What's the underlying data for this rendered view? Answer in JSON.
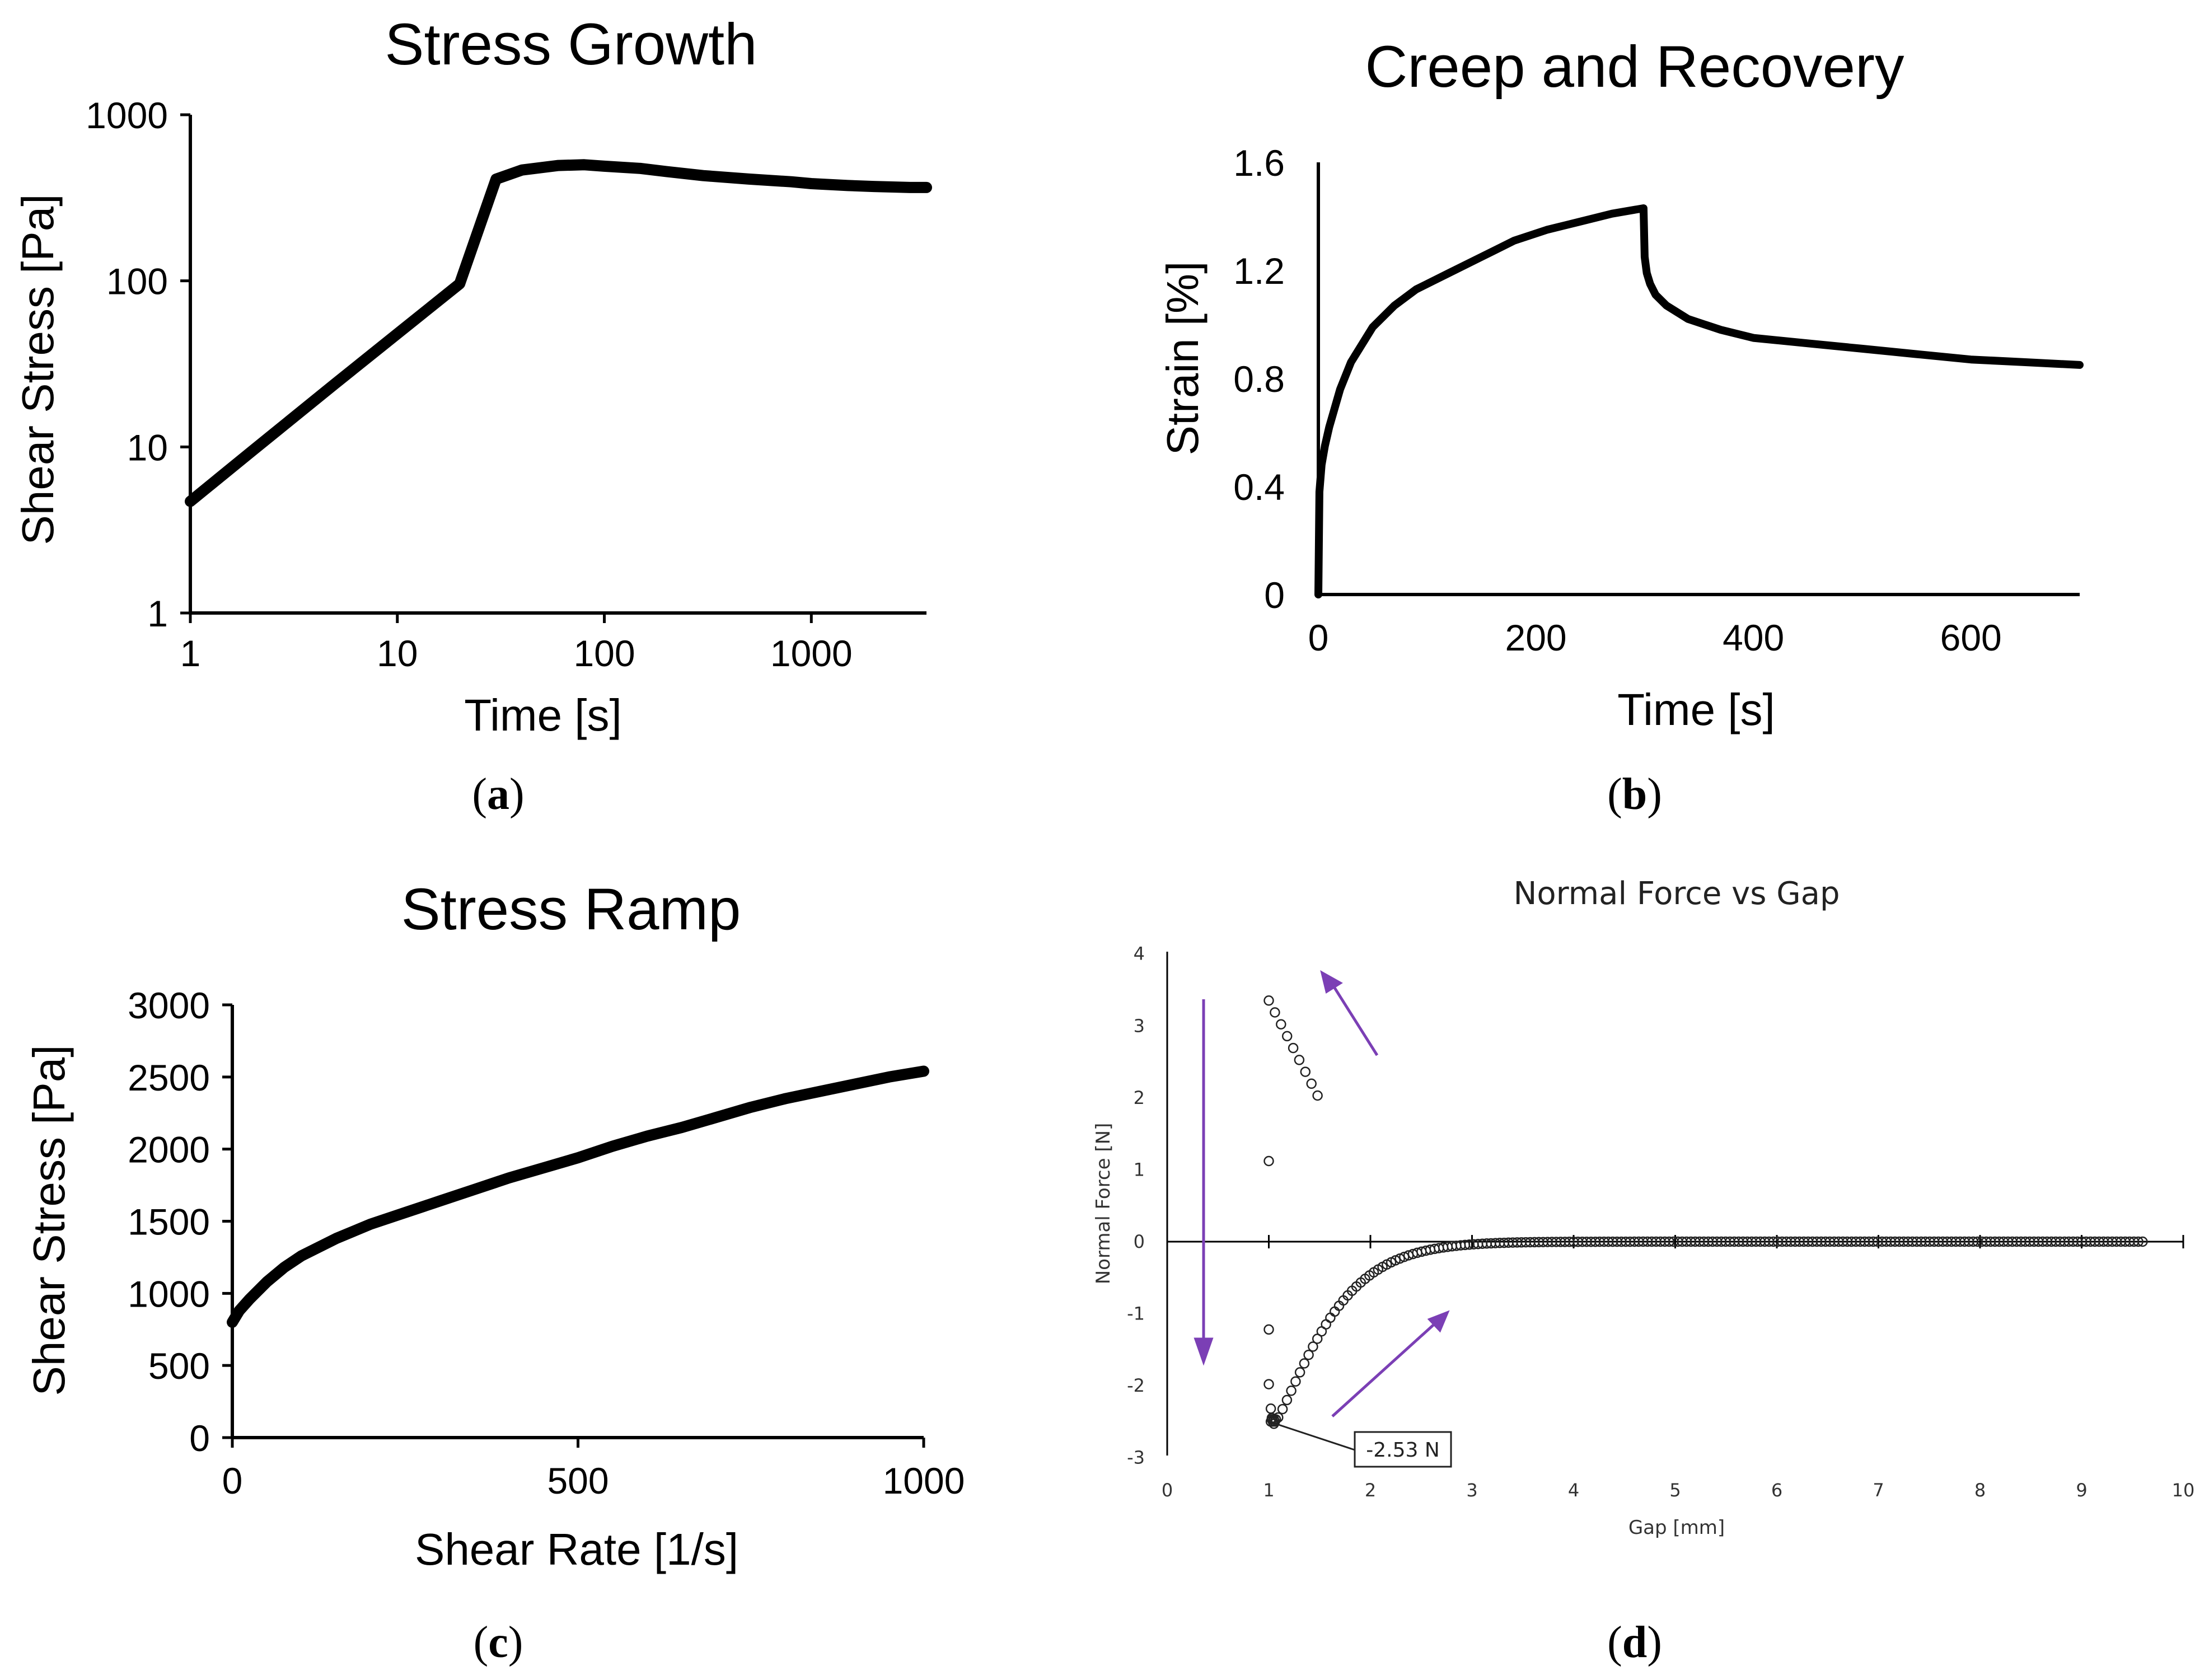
{
  "chart_data": [
    {
      "panel": "a",
      "type": "line",
      "title": "Stress Growth",
      "xlabel": "Time [s]",
      "ylabel": "Shear Stress [Pa]",
      "xscale": "log",
      "yscale": "log",
      "xlim": [
        1,
        3600
      ],
      "ylim": [
        1,
        1000
      ],
      "xticks": [
        "1",
        "10",
        "100",
        "1000"
      ],
      "yticks": [
        "1",
        "10",
        "100",
        "1000"
      ],
      "series": [
        {
          "name": "Shear Stress",
          "x": [
            1,
            2,
            5,
            10,
            20,
            30,
            40,
            60,
            80,
            100,
            150,
            200,
            300,
            500,
            800,
            1000,
            1500,
            2000,
            3000,
            3600
          ],
          "y": [
            4.7,
            9.5,
            24,
            48,
            96,
            410,
            465,
            495,
            500,
            490,
            475,
            455,
            430,
            410,
            395,
            385,
            375,
            370,
            365,
            365
          ]
        }
      ],
      "caption": "a"
    },
    {
      "panel": "b",
      "type": "line",
      "title": "Creep and Recovery",
      "xlabel": "Time [s]",
      "ylabel": "Strain [%]",
      "xlim": [
        0,
        700
      ],
      "ylim": [
        0,
        1.6
      ],
      "xticks": [
        "0",
        "200",
        "400",
        "600"
      ],
      "yticks": [
        "0",
        "0.4",
        "0.8",
        "1.2",
        "1.6"
      ],
      "series": [
        {
          "name": "Strain",
          "x": [
            0,
            1,
            3,
            6,
            10,
            20,
            30,
            50,
            70,
            90,
            120,
            150,
            180,
            210,
            240,
            270,
            299,
            300,
            302,
            305,
            310,
            320,
            340,
            370,
            400,
            450,
            500,
            550,
            600,
            650,
            700
          ],
          "y": [
            0,
            0.38,
            0.48,
            0.55,
            0.62,
            0.76,
            0.86,
            0.99,
            1.07,
            1.13,
            1.19,
            1.25,
            1.31,
            1.35,
            1.38,
            1.41,
            1.43,
            1.25,
            1.19,
            1.15,
            1.11,
            1.07,
            1.02,
            0.98,
            0.95,
            0.93,
            0.91,
            0.89,
            0.87,
            0.86,
            0.85
          ]
        }
      ],
      "caption": "b"
    },
    {
      "panel": "c",
      "type": "line",
      "title": "Stress Ramp",
      "xlabel": "Shear Rate [1/s]",
      "ylabel": "Shear Stress [Pa]",
      "xlim": [
        0,
        1000
      ],
      "ylim": [
        0,
        3000
      ],
      "xticks": [
        "0",
        "500",
        "1000"
      ],
      "yticks": [
        "0",
        "500",
        "1000",
        "1500",
        "2000",
        "2500",
        "3000"
      ],
      "series": [
        {
          "name": "Shear Stress",
          "x": [
            0,
            10,
            25,
            50,
            75,
            100,
            150,
            200,
            250,
            300,
            350,
            400,
            450,
            500,
            550,
            600,
            650,
            700,
            750,
            800,
            850,
            900,
            950,
            1000
          ],
          "y": [
            800,
            880,
            960,
            1080,
            1180,
            1260,
            1380,
            1480,
            1560,
            1640,
            1720,
            1800,
            1870,
            1940,
            2020,
            2090,
            2150,
            2220,
            2290,
            2350,
            2400,
            2450,
            2500,
            2540
          ]
        }
      ],
      "caption": "c"
    },
    {
      "panel": "d",
      "type": "scatter",
      "title": "Normal Force vs Gap",
      "xlabel": "Gap [mm]",
      "ylabel": "Normal Force [N]",
      "xlim": [
        0,
        10
      ],
      "ylim": [
        -3,
        4
      ],
      "xticks": [
        "0",
        "1",
        "2",
        "3",
        "4",
        "5",
        "6",
        "7",
        "8",
        "9",
        "10"
      ],
      "yticks": [
        "-3",
        "-2",
        "-1",
        "0",
        "1",
        "2",
        "3",
        "4"
      ],
      "annotation": "-2.53 N",
      "arrow_color": "#7b3fb5",
      "caption": "d"
    }
  ]
}
